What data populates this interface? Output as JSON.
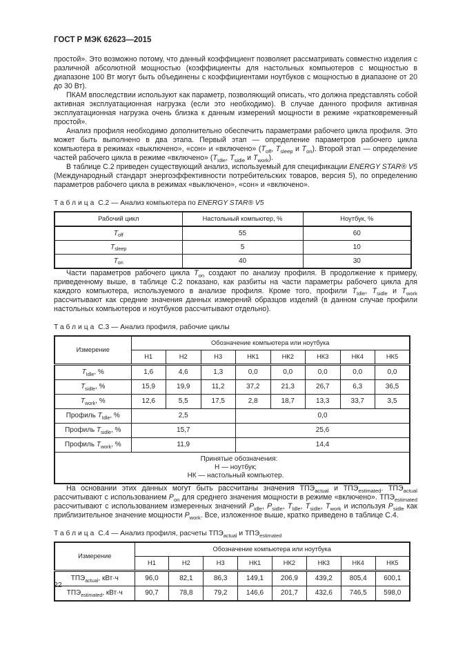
{
  "page": {
    "header": "ГОСТ Р МЭК 62623—2015",
    "page_number": "22"
  },
  "paragraphs": {
    "p1": "простой». Это возможно потому, что данный коэффициент позволяет рассматривать совместно изделия с различной абсолютной мощностью (коэффициенты для настольных компьютеров с мощностью в диапазоне 100 Вт могут быть объединены с коэффициентами ноутбуков с мощностью в диапазоне от 20 до 30 Вт).",
    "p2": "ПКАМ впоследствии используют как параметр, позволяющий описать, что должна представлять собой активная эксплуатационная нагрузка (если это необходимо). В случае данного профиля активная эксплуатационная нагрузка очень близка к данным измерений мощности в режиме «кратковременный простой».",
    "p3": "Анализ профиля необходимо дополнительно обеспечить параметрами рабочего цикла профиля. Это может быть выполнено в два этапа. Первый этап — определение параметров рабочего цикла компьютера в режимах «выключено», «сон» и «включено» (*T*~off~, *T*~sleep~ и *T*~on~). Второй этап — определение частей рабочего цикла в режиме «включено» (*T*~Idle~, *T*~sidle~ и *T*~work~).",
    "p4": "В таблице С.2 приведен существующий анализ, используемый для спецификации *ENERGY STAR® V5* (Международный стандарт энергоэффективности потребительских товаров, версия 5), по определению параметров рабочего цикла в режимах «выключено», «сон» и «включено».",
    "p5": "Части параметров рабочего цикла *T*~on~ создают по анализу профиля. В продолжение к примеру, приведенному выше, в таблице С.2 показано, как разбиты на части параметры рабочего цикла для каждого компьютера, используемого в анализе профиля. Кроме того, профили *T*~Idle~, *T*~sidle~ и *T*~work~ рассчитывают как средние значения данных измерений образцов изделий (в данном случае профили настольных компьютеров и ноутбуков рассчитывают отдельно).",
    "p6": "На основании этих данных могут быть рассчитаны значения ТПЭ~actual~ и ТПЭ~estimated~. ТПЭ~actual~ рассчитывают с использованием *P*~on~ для среднего значения мощности в режиме «включено». ТПЭ~estimated~ рассчитывают с использованием измеренных значений *P*~idle~, *P*~sidle~, *T*~Idle~, *T*~sidle~, *T*~work~ и используя *P*~sidle~ как приблизительное значение мощности *P*~work~. Все, изложенное выше, кратко приведено в таблице С.4."
  },
  "table_c2": {
    "caption_word": "Таблица",
    "caption_rest": "С.2 — Анализ компьютера по *ENERGY STAR® V5*",
    "head": [
      "Рабочий цикл",
      "Настольный компьютер, %",
      "Ноутбук, %"
    ],
    "rows": [
      [
        "*T*~off~",
        "55",
        "60"
      ],
      [
        "*T*~sleep~",
        "5",
        "10"
      ],
      [
        "*T*~on~",
        "40",
        "30"
      ]
    ]
  },
  "table_c3": {
    "caption_word": "Таблица",
    "caption_rest": "С.3 — Анализ профиля, рабочие циклы",
    "measure_header": "Измерение",
    "span_header": "Обозначение компьютера или ноутбука",
    "col_headers": [
      "Н1",
      "Н2",
      "Н3",
      "НК1",
      "НК2",
      "НК3",
      "НК4",
      "НК5"
    ],
    "rows": [
      [
        "*T*~Idle~, %",
        "1,6",
        "4,6",
        "1,3",
        "0,0",
        "0,0",
        "0,0",
        "0,0",
        "0,0"
      ],
      [
        "*T*~sidle~, %",
        "15,9",
        "19,9",
        "11,2",
        "37,2",
        "21,3",
        "26,7",
        "6,3",
        "36,5"
      ],
      [
        "*T*~work~, %",
        "12,6",
        "5,5",
        "17,5",
        "2,8",
        "18,7",
        "13,3",
        "33,7",
        "3,5"
      ]
    ],
    "profile_rows": [
      {
        "label": "Профиль *T*~Idle~, %",
        "h": "2,5",
        "hk": "0,0"
      },
      {
        "label": "Профиль *T*~sidle~, %",
        "h": "15,7",
        "hk": "25,6"
      },
      {
        "label": "Профиль *T*~work~, %",
        "h": "11,9",
        "hk": "14,4"
      }
    ],
    "legend": [
      "Принятые обозначения:",
      "Н — ноутбук;",
      "НК — настольный компьютер."
    ]
  },
  "table_c4": {
    "caption_word": "Таблица",
    "caption_rest": "С.4 — Анализ профиля, расчеты ТПЭ~actual~ и ТПЭ~estimated~",
    "measure_header": "Измерение",
    "span_header": "Обозначение компьютера или ноутбука",
    "col_headers": [
      "Н1",
      "Н2",
      "Н3",
      "НК1",
      "НК2",
      "НК3",
      "НК4",
      "НК5"
    ],
    "rows": [
      [
        "ТПЭ~actual~, кВт·ч",
        "96,0",
        "82,1",
        "86,3",
        "149,1",
        "206,9",
        "439,2",
        "805,4",
        "600,1"
      ],
      [
        "ТПЭ~estimated~, кВт·ч",
        "90,7",
        "78,8",
        "79,2",
        "146,6",
        "201,7",
        "432,6",
        "746,5",
        "598,0"
      ]
    ]
  }
}
